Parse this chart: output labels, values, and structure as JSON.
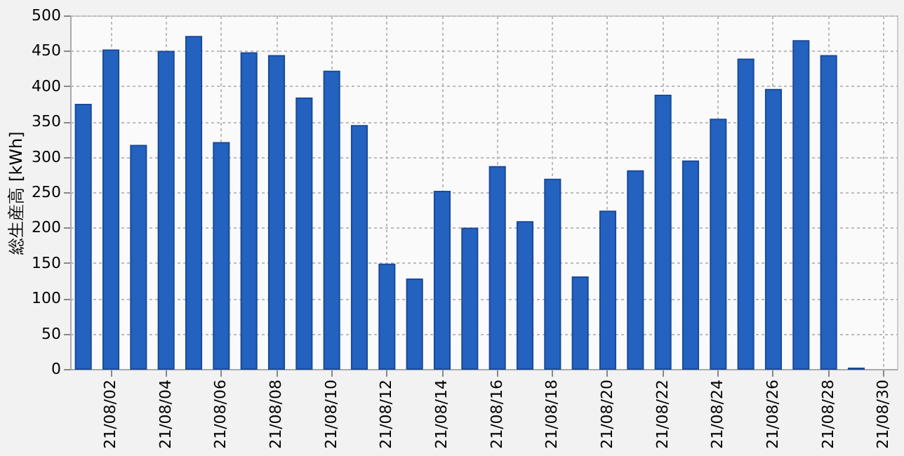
{
  "chart_data": {
    "type": "bar",
    "ylabel": "総生産高 [kWh]",
    "categories": [
      null,
      "21/08/02",
      null,
      "21/08/04",
      null,
      "21/08/06",
      null,
      "21/08/08",
      null,
      "21/08/10",
      null,
      "21/08/12",
      null,
      "21/08/14",
      null,
      "21/08/16",
      null,
      "21/08/18",
      null,
      "21/08/20",
      null,
      "21/08/22",
      null,
      "21/08/24",
      null,
      "21/08/26",
      null,
      "21/08/28",
      null,
      "21/08/30"
    ],
    "values": [
      374,
      451,
      316,
      449,
      470,
      320,
      447,
      443,
      383,
      421,
      344,
      148,
      127,
      251,
      199,
      286,
      208,
      268,
      130,
      223,
      280,
      387,
      294,
      353,
      438,
      395,
      464,
      443,
      1,
      null
    ],
    "color": "#2462c0",
    "ylim": [
      0,
      500
    ],
    "yticks": [
      0,
      50,
      100,
      150,
      200,
      250,
      300,
      350,
      400,
      450,
      500
    ],
    "grid": true
  }
}
